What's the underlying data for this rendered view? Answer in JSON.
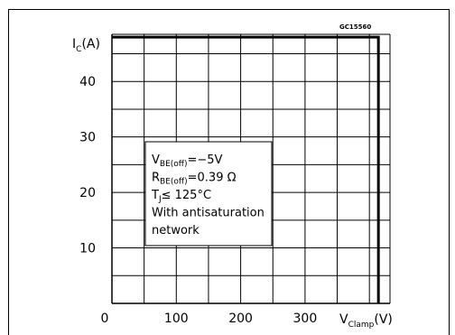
{
  "figure_code": "GC15560",
  "chart_data": {
    "type": "line",
    "title": "",
    "y_axis_label": {
      "main": "I",
      "subscript": "C",
      "unit": "(A)"
    },
    "x_axis_label": {
      "main": "V",
      "subscript": "Clamp",
      "unit": "(V)"
    },
    "xlim": [
      0,
      432
    ],
    "ylim": [
      0,
      48.5
    ],
    "x_ticks": [
      0,
      100,
      200,
      300
    ],
    "y_ticks": [
      10,
      20,
      30,
      40
    ],
    "x_tick_labels": [
      "0",
      "100",
      "200",
      "300"
    ],
    "y_tick_labels": [
      "10",
      "20",
      "30",
      "40"
    ],
    "grid": true,
    "grid_step_x": 50,
    "grid_step_y": 5,
    "series": [
      {
        "x": [
          0,
          414,
          414
        ],
        "y": [
          48,
          48,
          0
        ]
      }
    ],
    "annotation": [
      {
        "main": "V",
        "sub": "BE(off)",
        "rest": "=−5V"
      },
      {
        "main": "R",
        "sub": "BE(off)",
        "rest": "=0.39 Ω"
      },
      {
        "main": "T",
        "sub": "J",
        "rest": "≤ 125°C"
      },
      {
        "main": "With  antisaturation",
        "sub": "",
        "rest": ""
      },
      {
        "main": "network",
        "sub": "",
        "rest": ""
      }
    ]
  }
}
